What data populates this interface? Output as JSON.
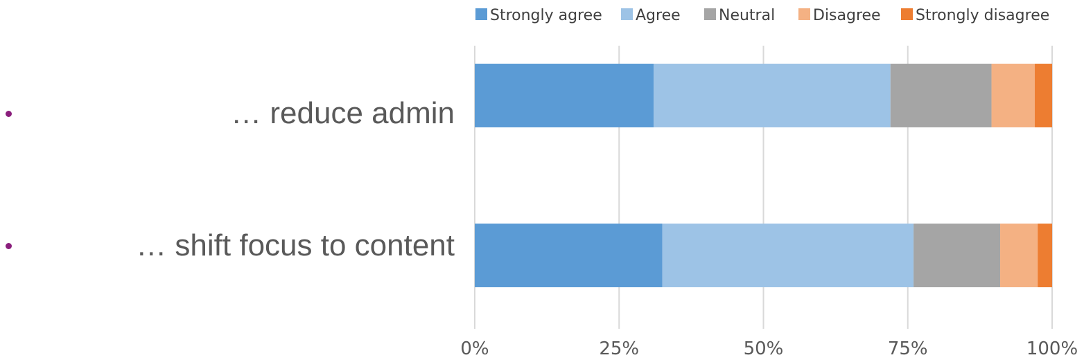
{
  "bullets": [
    {
      "text": "… reduce admin"
    },
    {
      "text": "… shift focus to content"
    }
  ],
  "chart_data": {
    "type": "bar",
    "orientation": "horizontal",
    "stacked": "percent",
    "title": "",
    "xlabel": "",
    "ylabel": "",
    "categories": [
      "… reduce admin",
      "… shift focus to content"
    ],
    "series": [
      {
        "name": "Strongly agree",
        "color": "#5b9bd5",
        "values": [
          31,
          32.5
        ]
      },
      {
        "name": "Agree",
        "color": "#9dc3e6",
        "values": [
          41,
          43.5
        ]
      },
      {
        "name": "Neutral",
        "color": "#a5a5a5",
        "values": [
          17.5,
          15
        ]
      },
      {
        "name": "Disagree",
        "color": "#f4b183",
        "values": [
          7.5,
          6.5
        ]
      },
      {
        "name": "Strongly disagree",
        "color": "#ed7d31",
        "values": [
          3,
          2.5
        ]
      }
    ],
    "xlim": [
      0,
      100
    ],
    "x_ticks": [
      "0%",
      "25%",
      "50%",
      "75%",
      "100%"
    ],
    "x_tick_values": [
      0,
      25,
      50,
      75,
      100
    ],
    "grid": "vertical",
    "legend_position": "top-right"
  }
}
